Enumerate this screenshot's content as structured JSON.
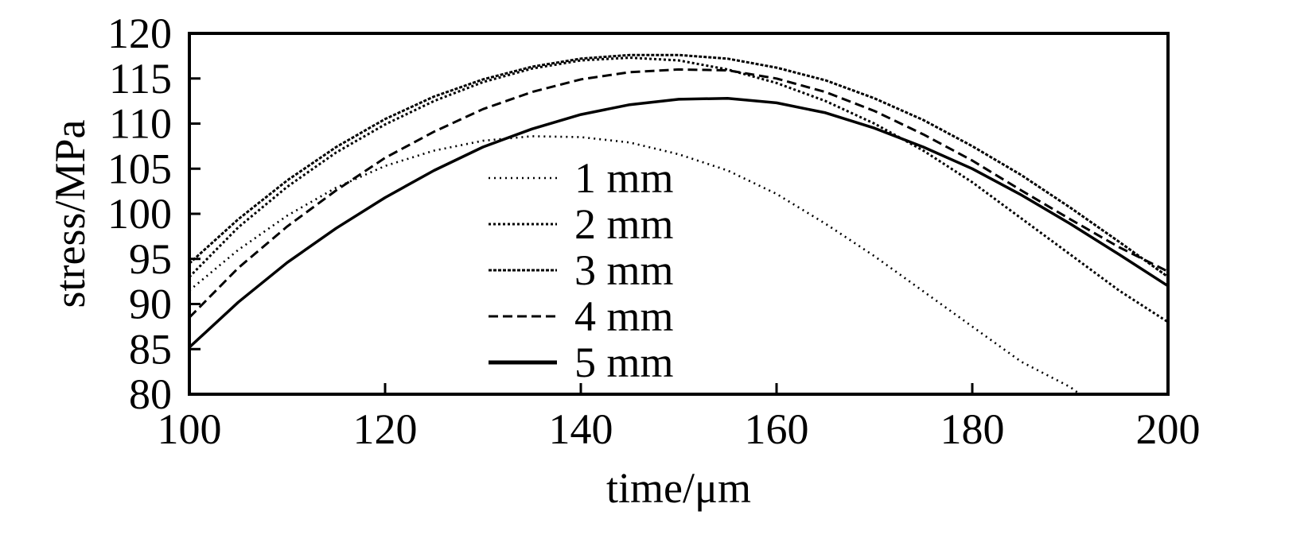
{
  "chart_data": {
    "type": "line",
    "title": "",
    "xlabel": "time/μm",
    "ylabel": "stress/MPa",
    "xlim": [
      100,
      200
    ],
    "ylim": [
      80,
      120
    ],
    "xticks": [
      100,
      120,
      140,
      160,
      180,
      200
    ],
    "yticks": [
      80,
      85,
      90,
      95,
      100,
      105,
      110,
      115,
      120
    ],
    "grid": false,
    "legend_position": "center",
    "series": [
      {
        "name": "1 mm",
        "style": "dotted-fine",
        "x": [
          100,
          105,
          110,
          115,
          120,
          125,
          130,
          135,
          140,
          145,
          150,
          155,
          160,
          165,
          170,
          175,
          180,
          185,
          190,
          191
        ],
        "y": [
          91.5,
          96.0,
          99.8,
          102.9,
          105.3,
          107.0,
          108.1,
          108.6,
          108.5,
          107.9,
          106.6,
          104.8,
          102.2,
          98.9,
          95.3,
          91.4,
          87.5,
          83.6,
          80.8,
          80.0
        ]
      },
      {
        "name": "2 mm",
        "style": "dotted",
        "x": [
          100,
          105,
          110,
          115,
          120,
          125,
          130,
          135,
          140,
          145,
          150,
          155,
          160,
          165,
          170,
          175,
          180,
          185,
          190,
          195,
          200
        ],
        "y": [
          93.0,
          98.5,
          103.0,
          106.8,
          109.9,
          112.5,
          114.6,
          116.1,
          117.0,
          117.3,
          117.0,
          116.0,
          114.5,
          112.5,
          110.0,
          107.0,
          103.5,
          99.5,
          95.5,
          91.5,
          88.0
        ]
      },
      {
        "name": "3 mm",
        "style": "dashdot-fine",
        "x": [
          100,
          105,
          110,
          115,
          120,
          125,
          130,
          135,
          140,
          145,
          150,
          155,
          160,
          165,
          170,
          175,
          180,
          185,
          190,
          195,
          200
        ],
        "y": [
          94.5,
          99.4,
          103.7,
          107.4,
          110.5,
          113.0,
          114.9,
          116.3,
          117.2,
          117.6,
          117.6,
          117.2,
          116.2,
          114.8,
          112.8,
          110.4,
          107.5,
          104.3,
          100.7,
          96.9,
          93.0
        ]
      },
      {
        "name": "4 mm",
        "style": "dashed",
        "x": [
          100,
          105,
          110,
          115,
          120,
          125,
          130,
          135,
          140,
          145,
          150,
          155,
          160,
          165,
          170,
          175,
          180,
          185,
          190,
          195,
          200
        ],
        "y": [
          88.5,
          94.0,
          98.6,
          102.6,
          106.2,
          109.1,
          111.6,
          113.5,
          114.9,
          115.7,
          116.0,
          115.9,
          115.0,
          113.5,
          111.4,
          108.8,
          105.9,
          102.6,
          99.4,
          96.3,
          93.6
        ]
      },
      {
        "name": "5 mm",
        "style": "solid",
        "x": [
          100,
          105,
          110,
          115,
          120,
          125,
          130,
          135,
          140,
          145,
          150,
          155,
          160,
          165,
          170,
          175,
          180,
          185,
          190,
          195,
          200
        ],
        "y": [
          85.2,
          90.2,
          94.6,
          98.4,
          101.8,
          104.8,
          107.4,
          109.4,
          111.0,
          112.1,
          112.7,
          112.8,
          112.3,
          111.2,
          109.5,
          107.4,
          105.0,
          102.1,
          98.9,
          95.5,
          92.0
        ]
      }
    ]
  }
}
